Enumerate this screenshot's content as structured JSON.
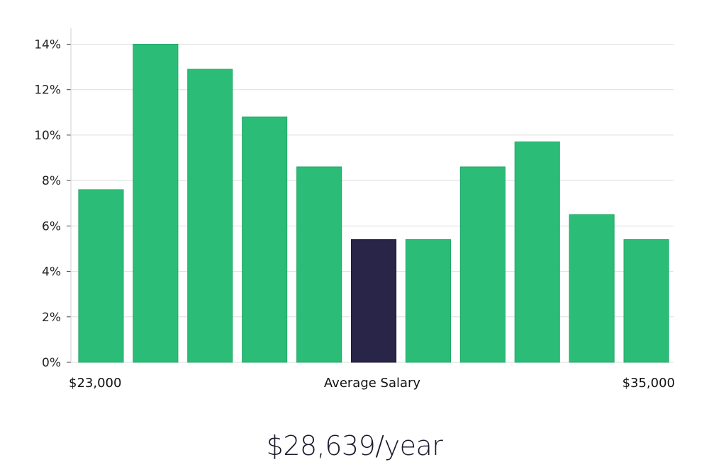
{
  "chart_data": {
    "type": "bar",
    "title": "",
    "xlabel": "Average Salary",
    "ylabel": "",
    "x_min_label": "$23,000",
    "x_max_label": "$35,000",
    "y_ticks": [
      0,
      2,
      4,
      6,
      8,
      10,
      12,
      14
    ],
    "y_tick_suffix": "%",
    "ylim": [
      0,
      14.7
    ],
    "values": [
      7.6,
      14.0,
      12.9,
      10.8,
      8.6,
      5.4,
      5.4,
      8.6,
      9.7,
      6.5,
      5.4
    ],
    "highlight_index": 5,
    "bar_color": "#2bbd77",
    "highlight_color": "#292548",
    "grid": true
  },
  "summary": {
    "average_salary": "$28,639/year"
  }
}
